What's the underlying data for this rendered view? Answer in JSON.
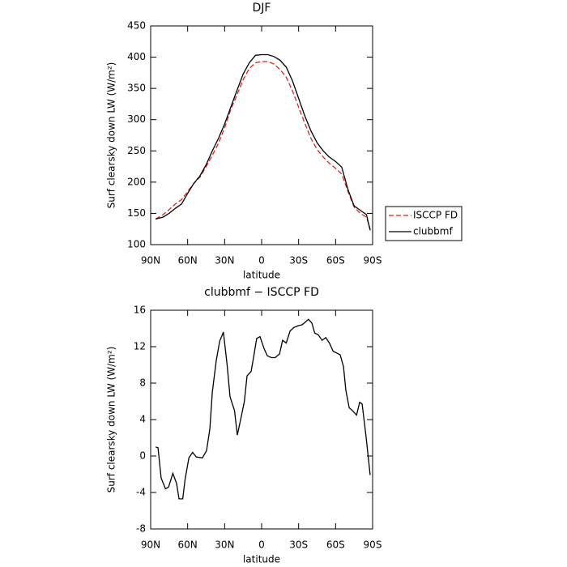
{
  "chart_data": [
    {
      "type": "line",
      "title": "DJF",
      "xlabel": "latitude",
      "ylabel": "Surf clearsky down LW (W/m²)",
      "x": [
        86,
        80,
        75,
        70,
        65,
        60,
        55,
        50,
        45,
        40,
        35,
        30,
        25,
        20,
        15,
        10,
        5,
        0,
        -5,
        -10,
        -15,
        -20,
        -25,
        -30,
        -35,
        -40,
        -45,
        -50,
        -55,
        -60,
        -65,
        -70,
        -75,
        -80,
        -85,
        -88
      ],
      "series": [
        {
          "name": "ISCCP FD",
          "color": "#e0201b",
          "dash": true,
          "values": [
            141,
            148,
            156,
            165,
            172,
            185,
            198,
            208,
            225,
            243,
            262,
            287,
            316,
            340,
            364,
            382,
            391,
            393,
            393,
            389,
            380,
            368,
            346,
            320,
            294,
            270,
            252,
            240,
            230,
            222,
            213,
            185,
            160,
            150,
            144,
            125
          ]
        },
        {
          "name": "clubbmf",
          "color": "#000000",
          "dash": false,
          "values": [
            141,
            144,
            150,
            158,
            165,
            182,
            198,
            210,
            228,
            250,
            270,
            293,
            320,
            347,
            373,
            391,
            403,
            404,
            404,
            401,
            395,
            384,
            362,
            334,
            306,
            282,
            263,
            250,
            240,
            233,
            224,
            188,
            162,
            155,
            148,
            123
          ]
        }
      ],
      "xlim": [
        90,
        -90
      ],
      "xticks": [
        {
          "value": 90,
          "label": "90N"
        },
        {
          "value": 60,
          "label": "60N"
        },
        {
          "value": 30,
          "label": "30N"
        },
        0,
        {
          "value": -30,
          "label": "30S"
        },
        {
          "value": -60,
          "label": "60S"
        },
        {
          "value": -90,
          "label": "90S"
        }
      ],
      "ylim": [
        100,
        450
      ],
      "yticks": [
        100,
        150,
        200,
        250,
        300,
        350,
        400,
        450
      ],
      "legend": "right"
    },
    {
      "type": "line",
      "title": "clubbmf − ISCCP FD",
      "xlabel": "latitude",
      "ylabel": "Surf clearsky down LW (W/m²)",
      "x": [
        86,
        84,
        81.5,
        78,
        75.5,
        72,
        69,
        67,
        64,
        62,
        59,
        56,
        53,
        48,
        44.7,
        42,
        40,
        36.8,
        34,
        31,
        28,
        25.6,
        22,
        19.7,
        17,
        14,
        11.8,
        8.5,
        6.6,
        4,
        1.3,
        -2,
        -4.6,
        -7.9,
        -11,
        -14.5,
        -17,
        -20,
        -23,
        -26,
        -29.6,
        -32.8,
        -35.5,
        -38,
        -40.7,
        -43,
        -46,
        -49,
        -52,
        -55,
        -58,
        -61,
        -63.7,
        -66.4,
        -68.3,
        -71,
        -73.6,
        -77,
        -79.5,
        -81.5,
        -84.8,
        -88
      ],
      "series": [
        {
          "name": "clubbmf − ISCCP FD",
          "color": "#000000",
          "dash": false,
          "values": [
            1.0,
            0.9,
            -2.4,
            -3.6,
            -3.4,
            -1.9,
            -3.0,
            -4.7,
            -4.7,
            -2.5,
            -0.2,
            0.4,
            -0.1,
            -0.2,
            0.6,
            3,
            7,
            10.5,
            12.6,
            13.6,
            10,
            6.5,
            5,
            2.3,
            4,
            6,
            8.8,
            9.3,
            10.8,
            12.9,
            13.1,
            11.8,
            11,
            10.8,
            10.8,
            11.2,
            12.7,
            12.4,
            13.7,
            14.1,
            14.3,
            14.4,
            14.7,
            15.0,
            14.6,
            13.5,
            13.3,
            12.7,
            13.0,
            12.4,
            11.5,
            11.3,
            11.1,
            9.8,
            7.2,
            5.3,
            5.0,
            4.5,
            5.9,
            5.7,
            2,
            -2.1
          ]
        }
      ],
      "xlim": [
        90,
        -90
      ],
      "xticks": [
        {
          "value": 90,
          "label": "90N"
        },
        {
          "value": 60,
          "label": "60N"
        },
        {
          "value": 30,
          "label": "30N"
        },
        0,
        {
          "value": -30,
          "label": "30S"
        },
        {
          "value": -60,
          "label": "60S"
        },
        {
          "value": -90,
          "label": "90S"
        }
      ],
      "ylim": [
        -8,
        16
      ],
      "yticks": [
        -8,
        -4,
        0,
        4,
        8,
        12,
        16
      ]
    }
  ]
}
